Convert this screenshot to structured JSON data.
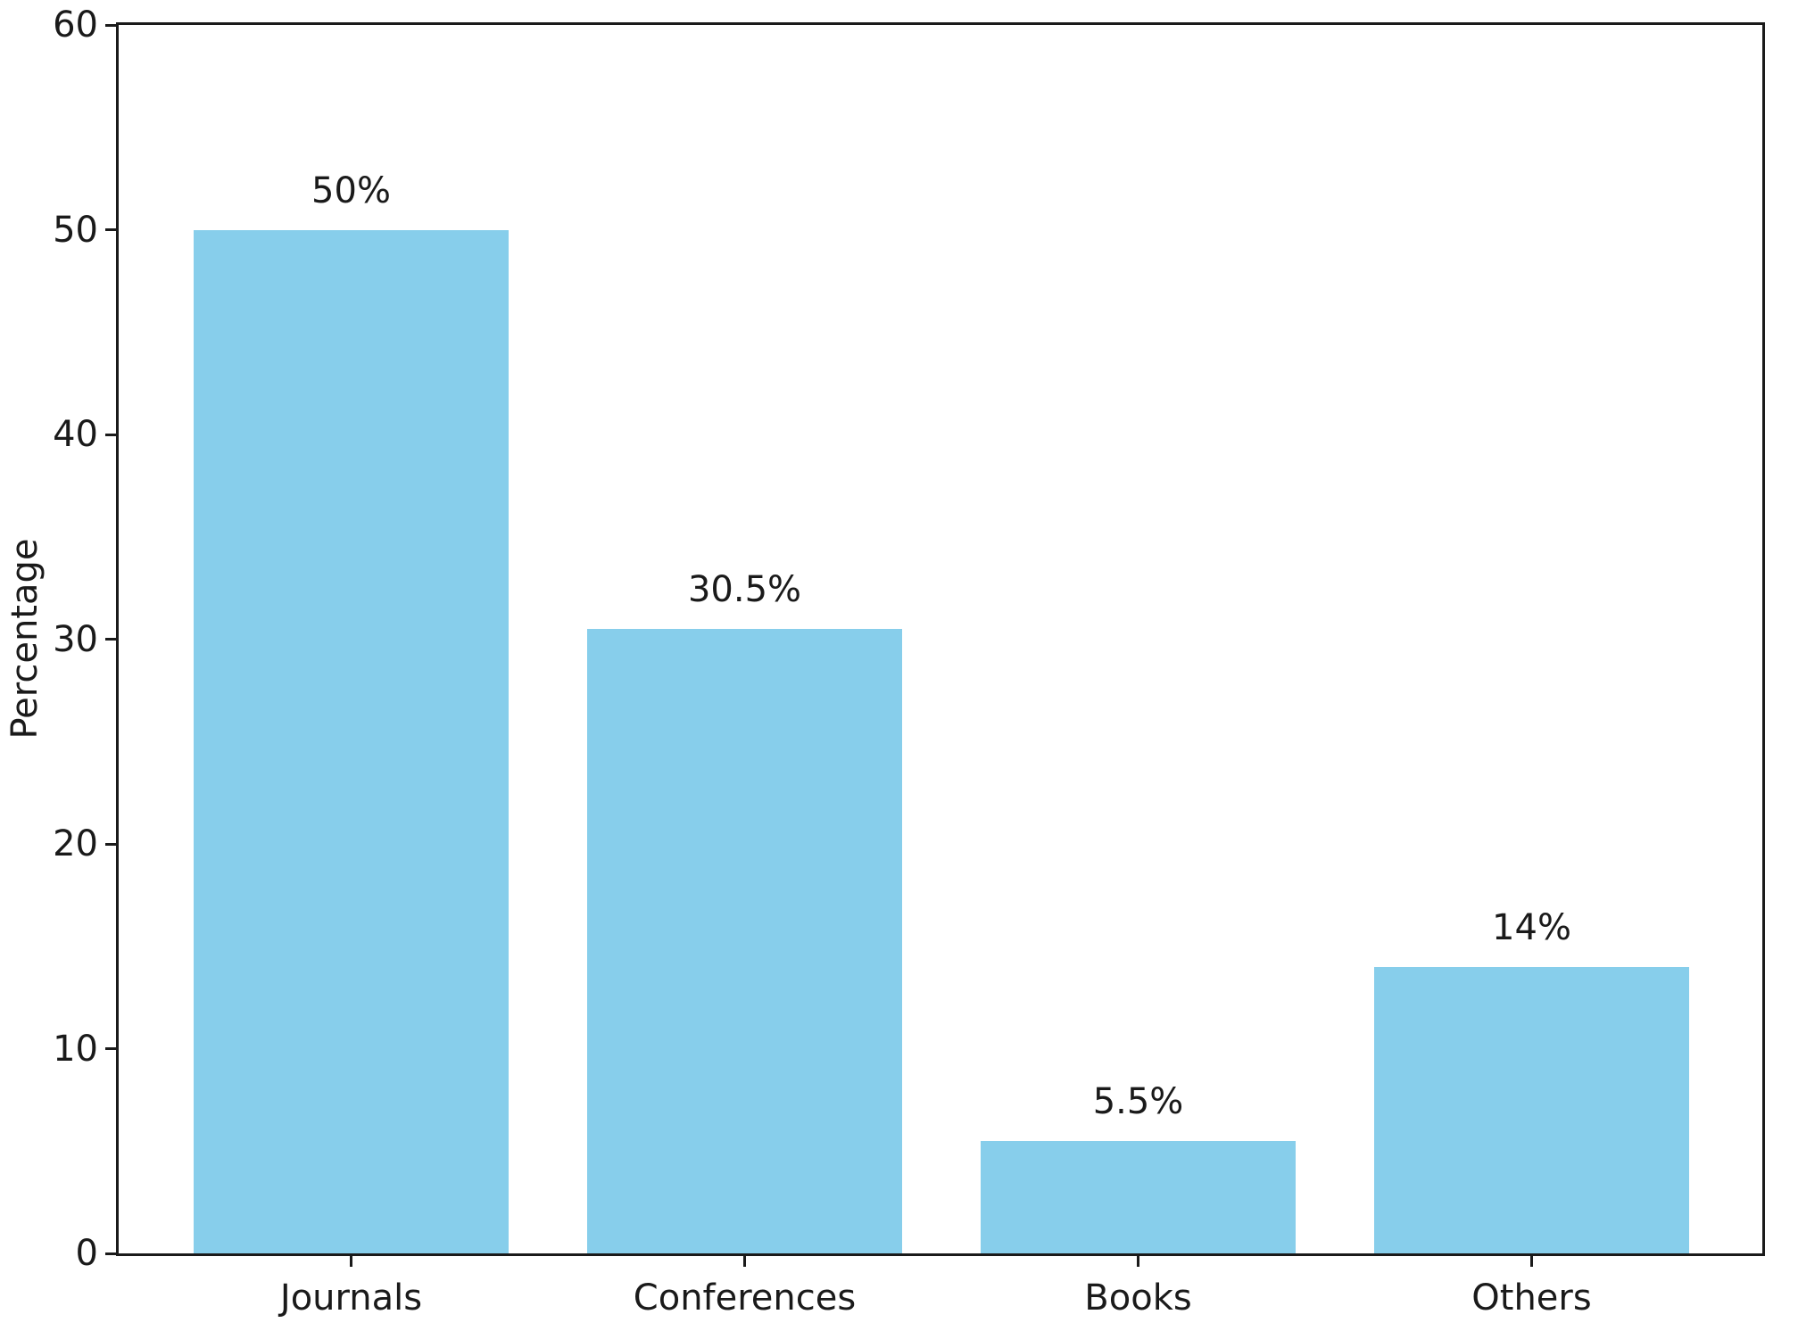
{
  "chart_data": {
    "type": "bar",
    "title": "",
    "categories": [
      "Journals",
      "Conferences",
      "Books",
      "Others"
    ],
    "values": [
      50,
      30.5,
      5.5,
      14
    ],
    "bar_labels": [
      "50%",
      "30.5%",
      "5.5%",
      "14%"
    ],
    "xlabel": "",
    "ylabel": "Percentage",
    "ylim": [
      0,
      60
    ],
    "yticks": [
      0,
      10,
      20,
      30,
      40,
      50,
      60
    ],
    "grid": "off",
    "legend": "none",
    "bar_color": "#87CEEB",
    "axis_color": "#1a1a1a",
    "text_color": "#1a1a1a",
    "background_color": "#ffffff"
  }
}
